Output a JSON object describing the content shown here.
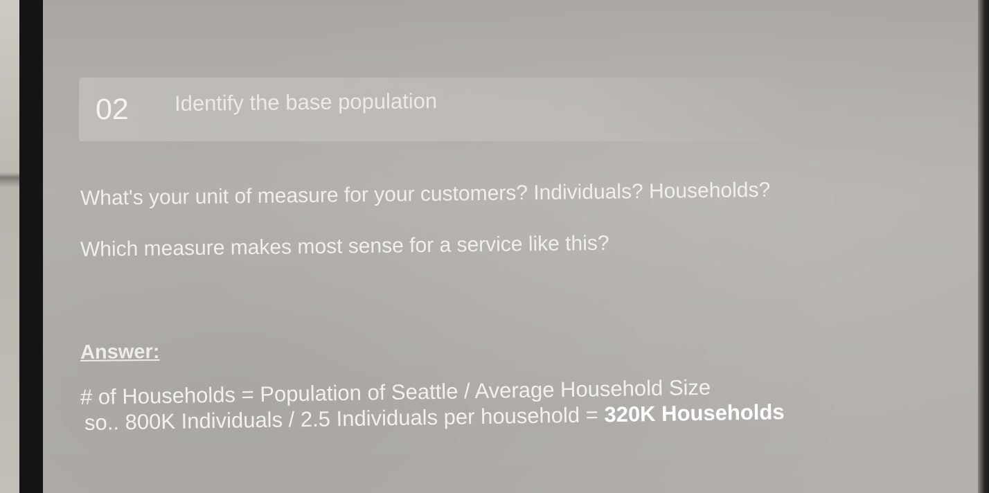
{
  "slide": {
    "section_number": "02",
    "section_title": "Identify the base population",
    "questions": [
      "What's your unit of measure for your customers? Individuals? Households?",
      "Which measure makes most sense for a service like this?"
    ],
    "answer_label": "Answer:",
    "answer_line_1": "# of Households = Population of Seattle / Average Household Size",
    "answer_line_2_prefix": "so.. 800K Individuals / 2.5 Individuals per household = ",
    "answer_line_2_result": "320K Households"
  }
}
